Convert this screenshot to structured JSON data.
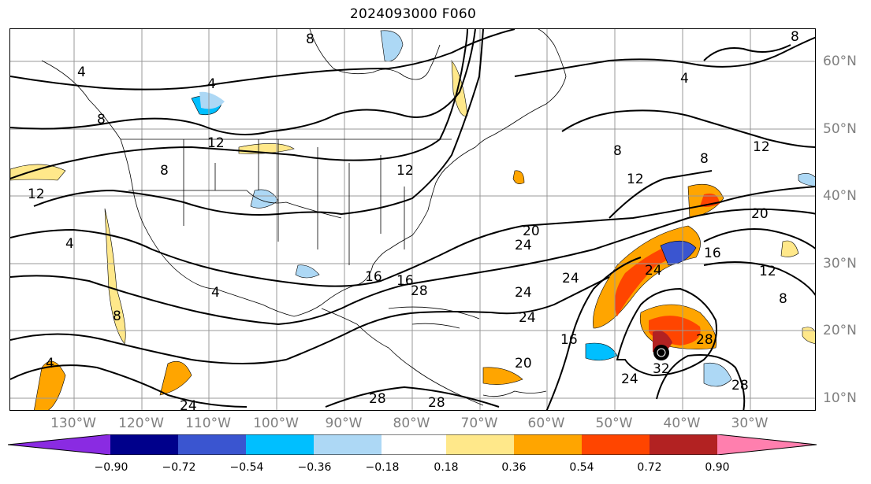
{
  "title": "2024093000 F060",
  "lon_labels": [
    "130°W",
    "120°W",
    "110°W",
    "100°W",
    "90°W",
    "80°W",
    "70°W",
    "60°W",
    "50°W",
    "40°W",
    "30°W"
  ],
  "lat_labels": [
    "60°N",
    "50°N",
    "40°N",
    "30°N",
    "20°N",
    "10°N"
  ],
  "contour_labels": [
    "8",
    "4",
    "4",
    "8",
    "12",
    "12",
    "4",
    "8",
    "12",
    "16",
    "20",
    "24",
    "24",
    "20",
    "24",
    "28",
    "28",
    "32",
    "28",
    "24",
    "16",
    "24",
    "28",
    "20",
    "24",
    "16",
    "12",
    "8",
    "4",
    "16",
    "12",
    "8",
    "8",
    "4",
    "8",
    "4",
    "24",
    "28",
    "8",
    "12"
  ],
  "colorbar": {
    "ticks": [
      "−0.90",
      "−0.72",
      "−0.54",
      "−0.36",
      "−0.18",
      "0.18",
      "0.36",
      "0.54",
      "0.72",
      "0.90"
    ],
    "colors": [
      "#8a2be2",
      "#00008b",
      "#3a55d0",
      "#00bfff",
      "#add8f5",
      "#ffffff",
      "#ffe88a",
      "#ffa500",
      "#ff4500",
      "#b22222",
      "#ff7fae"
    ]
  },
  "storm_marker": "hurricane-center"
}
